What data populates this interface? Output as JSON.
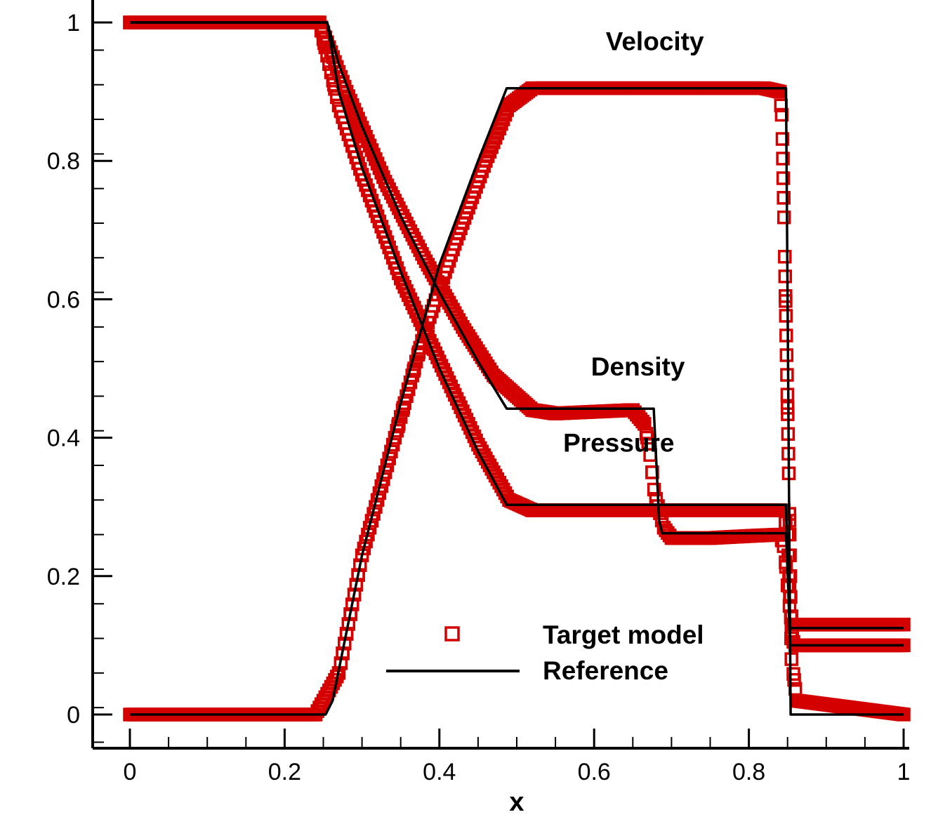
{
  "colors": {
    "marker": "#d40000",
    "line": "#000000",
    "axis": "#000000",
    "background": "#ffffff"
  },
  "chart_data": {
    "type": "line",
    "title": "",
    "xlabel": "x",
    "ylabel": "",
    "xlim": [
      -0.02,
      1.0
    ],
    "ylim": [
      -0.05,
      1.02
    ],
    "grid": false,
    "legend_position": "bottom-right",
    "x_ticks": [
      0,
      0.2,
      0.4,
      0.6,
      0.8,
      1
    ],
    "x_tick_labels": [
      "0",
      "0.2",
      "0.4",
      "0.6",
      "0.8",
      "1"
    ],
    "y_ticks": [
      0,
      0.2,
      0.4,
      0.6,
      0.8,
      1
    ],
    "y_tick_labels": [
      "0",
      "0.2",
      "0.4",
      "0.6",
      "0.8",
      "1"
    ],
    "legend": [
      {
        "label": "Target model",
        "marker": "square",
        "color": "#d40000"
      },
      {
        "label": "Reference",
        "marker": "line",
        "color": "#000000"
      }
    ],
    "annotations": [
      {
        "text": "Velocity",
        "x": 0.615,
        "y": 0.96
      },
      {
        "text": "Density",
        "x": 0.596,
        "y": 0.49
      },
      {
        "text": "Pressure",
        "x": 0.56,
        "y": 0.38
      }
    ],
    "reference": [
      {
        "name": "Density",
        "points": [
          [
            0,
            1.0
          ],
          [
            0.255,
            1.0
          ],
          [
            0.27,
            0.94
          ],
          [
            0.3,
            0.85
          ],
          [
            0.35,
            0.72
          ],
          [
            0.4,
            0.61
          ],
          [
            0.45,
            0.51
          ],
          [
            0.487,
            0.442
          ],
          [
            0.677,
            0.442
          ],
          [
            0.684,
            0.28
          ],
          [
            0.688,
            0.262
          ],
          [
            0.848,
            0.262
          ],
          [
            0.853,
            0.125
          ],
          [
            1.0,
            0.125
          ]
        ]
      },
      {
        "name": "Pressure",
        "points": [
          [
            0,
            1.0
          ],
          [
            0.255,
            1.0
          ],
          [
            0.27,
            0.9
          ],
          [
            0.3,
            0.79
          ],
          [
            0.35,
            0.64
          ],
          [
            0.4,
            0.5
          ],
          [
            0.45,
            0.38
          ],
          [
            0.487,
            0.303
          ],
          [
            0.848,
            0.303
          ],
          [
            0.853,
            0.1
          ],
          [
            1.0,
            0.1
          ]
        ]
      },
      {
        "name": "Velocity",
        "points": [
          [
            0,
            0.0
          ],
          [
            0.253,
            0.0
          ],
          [
            0.262,
            0.02
          ],
          [
            0.3,
            0.23
          ],
          [
            0.35,
            0.45
          ],
          [
            0.4,
            0.65
          ],
          [
            0.45,
            0.8
          ],
          [
            0.487,
            0.905
          ],
          [
            0.848,
            0.905
          ],
          [
            0.854,
            0.0
          ],
          [
            1.0,
            0.0
          ]
        ]
      }
    ],
    "target_model": [
      {
        "name": "Density",
        "points": [
          [
            0,
            1.0
          ],
          [
            0.245,
            1.0
          ],
          [
            0.28,
            0.9
          ],
          [
            0.33,
            0.77
          ],
          [
            0.38,
            0.66
          ],
          [
            0.43,
            0.56
          ],
          [
            0.47,
            0.49
          ],
          [
            0.52,
            0.44
          ],
          [
            0.55,
            0.435
          ],
          [
            0.65,
            0.44
          ],
          [
            0.665,
            0.42
          ],
          [
            0.672,
            0.38
          ],
          [
            0.678,
            0.32
          ],
          [
            0.69,
            0.27
          ],
          [
            0.7,
            0.255
          ],
          [
            0.75,
            0.255
          ],
          [
            0.8,
            0.258
          ],
          [
            0.84,
            0.26
          ],
          [
            0.846,
            0.24
          ],
          [
            0.852,
            0.16
          ],
          [
            0.857,
            0.13
          ],
          [
            1.0,
            0.13
          ]
        ]
      },
      {
        "name": "Pressure",
        "points": [
          [
            0,
            1.0
          ],
          [
            0.245,
            1.0
          ],
          [
            0.27,
            0.88
          ],
          [
            0.3,
            0.78
          ],
          [
            0.35,
            0.63
          ],
          [
            0.4,
            0.51
          ],
          [
            0.45,
            0.39
          ],
          [
            0.49,
            0.31
          ],
          [
            0.52,
            0.295
          ],
          [
            0.6,
            0.295
          ],
          [
            0.7,
            0.295
          ],
          [
            0.845,
            0.295
          ],
          [
            0.85,
            0.26
          ],
          [
            0.854,
            0.14
          ],
          [
            0.858,
            0.1
          ],
          [
            1.0,
            0.1
          ]
        ]
      },
      {
        "name": "Velocity",
        "points": [
          [
            0,
            0.0
          ],
          [
            0.24,
            0.0
          ],
          [
            0.27,
            0.06
          ],
          [
            0.3,
            0.23
          ],
          [
            0.34,
            0.39
          ],
          [
            0.38,
            0.55
          ],
          [
            0.42,
            0.68
          ],
          [
            0.46,
            0.8
          ],
          [
            0.49,
            0.88
          ],
          [
            0.52,
            0.905
          ],
          [
            0.6,
            0.905
          ],
          [
            0.7,
            0.905
          ],
          [
            0.82,
            0.905
          ],
          [
            0.84,
            0.9
          ],
          [
            0.843,
            0.86
          ],
          [
            0.846,
            0.69
          ],
          [
            0.852,
            0.32
          ],
          [
            0.855,
            0.08
          ],
          [
            0.862,
            0.02
          ],
          [
            1.0,
            0.0
          ]
        ]
      }
    ]
  }
}
